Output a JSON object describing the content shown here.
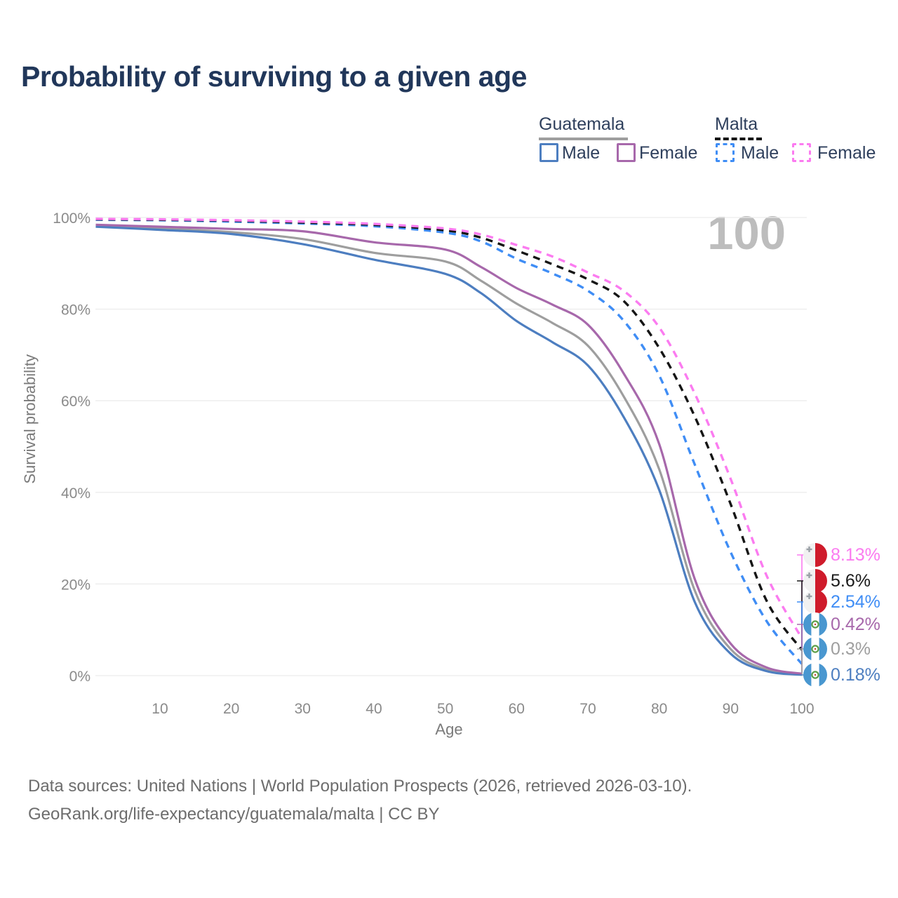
{
  "title": "Probability of surviving to a given age",
  "watermark_age": "100",
  "legend": {
    "position": "top-right",
    "groups": [
      {
        "label": "Guatemala",
        "line_style": "solid",
        "underline_color": "#9e9e9e",
        "items": [
          {
            "label": "Male",
            "color": "#4d7ec0"
          },
          {
            "label": "Female",
            "color": "#a768ab"
          }
        ]
      },
      {
        "label": "Malta",
        "line_style": "dashed",
        "underline_color": "#151515",
        "items": [
          {
            "label": "Male",
            "color": "#3f8df5"
          },
          {
            "label": "Female",
            "color": "#fb7bf0"
          }
        ]
      }
    ]
  },
  "chart_data": {
    "type": "line",
    "title": "Probability of surviving to a given age",
    "xlabel": "Age",
    "ylabel": "Survival probability",
    "xlim": [
      0,
      100
    ],
    "ylim": [
      0,
      100
    ],
    "x_ticks": [
      10,
      20,
      30,
      40,
      50,
      60,
      70,
      80,
      90,
      100
    ],
    "y_ticks": [
      "0%",
      "20%",
      "40%",
      "60%",
      "80%",
      "100%"
    ],
    "grid": "horizontal",
    "x": [
      1,
      10,
      20,
      30,
      40,
      50,
      55,
      60,
      65,
      70,
      75,
      80,
      85,
      90,
      95,
      100
    ],
    "series": [
      {
        "name": "Guatemala Both sexes",
        "country": "Guatemala",
        "color": "#9e9e9e",
        "line_style": "solid",
        "end_label": "0.3%",
        "values": [
          98.2,
          97.6,
          96.8,
          95.3,
          92.3,
          90.4,
          86.2,
          81.2,
          77.0,
          72.0,
          61.0,
          45.0,
          18.5,
          5.8,
          1.3,
          0.3
        ]
      },
      {
        "name": "Guatemala Male",
        "country": "Guatemala",
        "color": "#4d7ec0",
        "line_style": "solid",
        "end_label": "0.18%",
        "values": [
          98.0,
          97.3,
          96.4,
          94.2,
          90.8,
          87.7,
          83.5,
          77.4,
          72.8,
          67.7,
          56.5,
          40.5,
          16.0,
          4.8,
          1.0,
          0.18
        ]
      },
      {
        "name": "Guatemala Female",
        "country": "Guatemala",
        "color": "#a768ab",
        "line_style": "solid",
        "end_label": "0.42%",
        "values": [
          98.4,
          98.0,
          97.5,
          97.0,
          94.6,
          93.0,
          89.2,
          84.6,
          81.0,
          76.6,
          66.0,
          50.5,
          21.0,
          7.0,
          1.8,
          0.42
        ]
      },
      {
        "name": "Malta Male",
        "country": "Malta",
        "color": "#3f8df5",
        "line_style": "dashed",
        "end_label": "2.54%",
        "values": [
          99.5,
          99.4,
          99.1,
          98.7,
          98.1,
          96.7,
          94.8,
          91.0,
          87.8,
          84.0,
          77.5,
          65.5,
          46.0,
          27.0,
          12.0,
          2.54
        ]
      },
      {
        "name": "Malta Both sexes",
        "country": "Malta",
        "color": "#151515",
        "line_style": "dashed",
        "end_label": "5.6%",
        "values": [
          99.6,
          99.5,
          99.3,
          98.9,
          98.4,
          97.2,
          95.6,
          92.8,
          89.8,
          86.5,
          81.8,
          71.5,
          56.5,
          37.5,
          16.5,
          5.6
        ]
      },
      {
        "name": "Malta Female",
        "country": "Malta",
        "color": "#fb7bf0",
        "line_style": "dashed",
        "end_label": "8.13%",
        "values": [
          99.7,
          99.6,
          99.4,
          99.1,
          98.6,
          97.6,
          96.3,
          94.0,
          91.5,
          88.0,
          84.0,
          76.0,
          61.5,
          43.0,
          22.0,
          8.13
        ]
      }
    ]
  },
  "end_labels": [
    {
      "value": "8.13%",
      "pct": 8.13,
      "flag": "malta",
      "color": "#fb7bf0"
    },
    {
      "value": "5.6%",
      "pct": 5.6,
      "flag": "malta",
      "color": "#1a1a1a"
    },
    {
      "value": "2.54%",
      "pct": 2.54,
      "flag": "malta",
      "color": "#3f8df5"
    },
    {
      "value": "0.42%",
      "pct": 0.42,
      "flag": "guatemala",
      "color": "#a768ab"
    },
    {
      "value": "0.3%",
      "pct": 0.3,
      "flag": "guatemala",
      "color": "#9e9e9e"
    },
    {
      "value": "0.18%",
      "pct": 0.18,
      "flag": "guatemala",
      "color": "#4d7ec0"
    }
  ],
  "footer": {
    "line1": "Data sources: United Nations | World Population Prospects (2026, retrieved 2026-03-10).",
    "line2": "GeoRank.org/life-expectancy/guatemala/malta | CC BY"
  },
  "colors": {
    "title_text": "#21375a",
    "axis_text": "#7a7a7a",
    "tick_text": "#8a8a8a",
    "gridline": "#ececec",
    "watermark": "#bdbdbd",
    "footer_text": "#6d6d6d",
    "malta_flag_red": "#cf1b2b",
    "malta_flag_white": "#f1f1f1",
    "guatemala_flag_blue": "#4997d0",
    "guatemala_emblem_green": "#5c9e49"
  }
}
